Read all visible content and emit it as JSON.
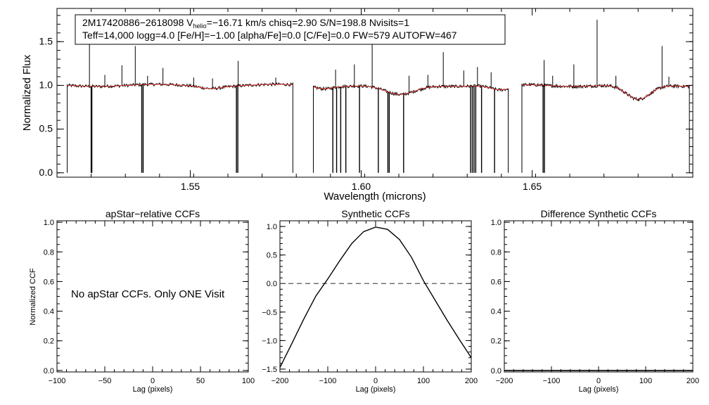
{
  "chart_data": [
    {
      "type": "line",
      "id": "spectrum",
      "xlabel": "Wavelength (microns)",
      "ylabel": "Normalized Flux",
      "xlim": [
        1.511,
        1.697
      ],
      "ylim": [
        -0.05,
        1.88
      ],
      "xticks": [
        1.55,
        1.6,
        1.65
      ],
      "xtick_labels": [
        "1.55",
        "1.60",
        "1.65"
      ],
      "yticks": [
        0.0,
        0.5,
        1.0,
        1.5
      ],
      "ytick_labels": [
        "0.0",
        "0.5",
        "1.0",
        "1.5"
      ],
      "info": {
        "line1_pre": "2M17420886−2618098  V",
        "line1_sub": "helio",
        "line1_post": "=−16.71 km/s  chisq=2.90  S/N=198.8  Nvisits=1",
        "line2": "Teff=14,000 logg=4.0 [Fe/H]=−1.00 [alpha/Fe]=0.0 [C/Fe]=0.0 FW=579 AUTOFW=467"
      },
      "chips": [
        [
          1.514,
          1.58
        ],
        [
          1.586,
          1.643
        ],
        [
          1.647,
          1.696
        ]
      ],
      "absorption_features": [
        {
          "center": 1.556,
          "depth": 0.025,
          "width": 0.003
        },
        {
          "center": 1.589,
          "depth": 0.03,
          "width": 0.0025
        },
        {
          "center": 1.6113,
          "depth": 0.115,
          "width": 0.0045
        },
        {
          "center": 1.641,
          "depth": 0.06,
          "width": 0.003
        },
        {
          "center": 1.681,
          "depth": 0.17,
          "width": 0.0035
        }
      ],
      "emission_spikes": [
        {
          "x": 1.5205,
          "y": 1.47
        },
        {
          "x": 1.525,
          "y": 1.12
        },
        {
          "x": 1.53,
          "y": 1.23
        },
        {
          "x": 1.5339,
          "y": 1.45
        },
        {
          "x": 1.5375,
          "y": 1.11
        },
        {
          "x": 1.542,
          "y": 1.2
        },
        {
          "x": 1.551,
          "y": 1.09
        },
        {
          "x": 1.5565,
          "y": 1.08
        },
        {
          "x": 1.564,
          "y": 1.28
        },
        {
          "x": 1.575,
          "y": 1.09
        },
        {
          "x": 1.5925,
          "y": 1.18
        },
        {
          "x": 1.598,
          "y": 1.24
        },
        {
          "x": 1.6032,
          "y": 1.52
        },
        {
          "x": 1.614,
          "y": 1.11
        },
        {
          "x": 1.6195,
          "y": 1.12
        },
        {
          "x": 1.624,
          "y": 1.38
        },
        {
          "x": 1.63,
          "y": 1.17
        },
        {
          "x": 1.634,
          "y": 1.21
        },
        {
          "x": 1.638,
          "y": 1.15
        },
        {
          "x": 1.6535,
          "y": 1.29
        },
        {
          "x": 1.656,
          "y": 1.11
        },
        {
          "x": 1.6622,
          "y": 1.24
        },
        {
          "x": 1.669,
          "y": 1.75
        },
        {
          "x": 1.6745,
          "y": 1.11
        },
        {
          "x": 1.688,
          "y": 1.45
        },
        {
          "x": 1.69,
          "y": 1.1
        }
      ],
      "bad_pixels": [
        1.521,
        1.5212,
        1.5358,
        1.5362,
        1.5635,
        1.5639,
        1.5917,
        1.5928,
        1.594,
        1.5955,
        1.5995,
        1.605,
        1.6078,
        1.6082,
        1.6124,
        1.632,
        1.6325,
        1.633,
        1.6335,
        1.6352,
        1.639,
        1.6532,
        1.6536
      ],
      "colors": {
        "observed": "#000000",
        "model": "#e8332f"
      }
    },
    {
      "type": "line",
      "id": "apstar-ccf",
      "title": "apStar−relative CCFs",
      "xlabel": "Lag (pixels)",
      "ylabel": "Normalized CCF",
      "xlim": [
        -100,
        100
      ],
      "ylim": [
        -0.01,
        1.01
      ],
      "xticks": [
        -100,
        -50,
        0,
        50,
        100
      ],
      "xtick_labels": [
        "−100",
        "−50",
        "0",
        "50",
        "100"
      ],
      "yticks": [
        0.0,
        0.2,
        0.4,
        0.6,
        0.8,
        1.0
      ],
      "ytick_labels": [
        "0.0",
        "0.2",
        "0.4",
        "0.6",
        "0.8",
        "1.0"
      ],
      "message": "No apStar CCFs.  Only ONE Visit",
      "series": []
    },
    {
      "type": "line",
      "id": "synthetic-ccf",
      "title": "Synthetic CCFs",
      "xlabel": "Lag (pixels)",
      "xlim": [
        -200,
        200
      ],
      "ylim": [
        -1.55,
        1.1
      ],
      "xticks": [
        -200,
        -100,
        0,
        100,
        200
      ],
      "xtick_labels": [
        "−200",
        "−100",
        "0",
        "100",
        "200"
      ],
      "yticks": [
        -1.5,
        -1.0,
        -0.5,
        0.0,
        0.5,
        1.0
      ],
      "ytick_labels": [
        "−1.5",
        "−1.0",
        "−0.5",
        "0.0",
        "0.5",
        "1.0"
      ],
      "zero_line": 0.0,
      "series": [
        {
          "name": "synthetic",
          "x": [
            -200,
            -175,
            -150,
            -125,
            -100,
            -75,
            -50,
            -25,
            0,
            25,
            50,
            75,
            100,
            125,
            150,
            175,
            200
          ],
          "y": [
            -1.47,
            -1.05,
            -0.62,
            -0.22,
            0.08,
            0.4,
            0.7,
            0.91,
            0.99,
            0.95,
            0.77,
            0.46,
            0.05,
            -0.3,
            -0.65,
            -0.98,
            -1.3
          ]
        }
      ]
    },
    {
      "type": "line",
      "id": "difference-ccf",
      "title": "Difference Synthetic CCFs",
      "xlabel": "Lag (pixels)",
      "xlim": [
        -200,
        200
      ],
      "ylim": [
        -0.01,
        1.01
      ],
      "xticks": [
        -200,
        -100,
        0,
        100,
        200
      ],
      "xtick_labels": [
        "−200",
        "−100",
        "0",
        "100",
        "200"
      ],
      "yticks": [
        0.0,
        0.2,
        0.4,
        0.6,
        0.8,
        1.0
      ],
      "ytick_labels": [
        "0.0",
        "0.2",
        "0.4",
        "0.6",
        "0.8",
        "1.0"
      ],
      "series": [
        {
          "name": "difference",
          "x": [
            -200,
            200
          ],
          "y": [
            0.0,
            0.0
          ]
        }
      ]
    }
  ]
}
